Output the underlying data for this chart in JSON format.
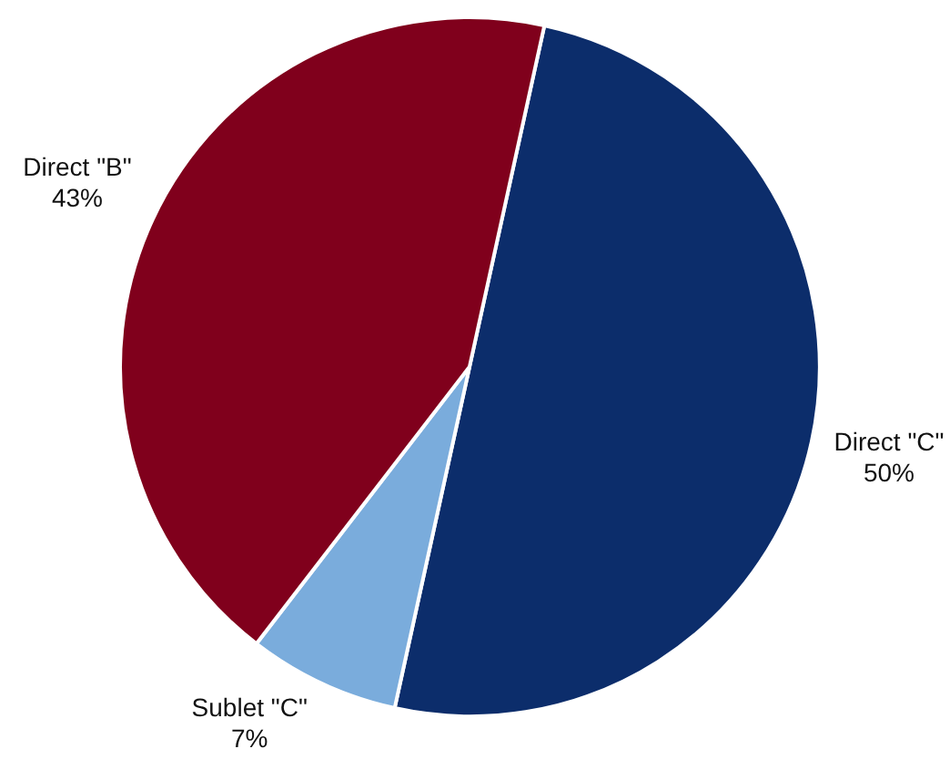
{
  "chart_data": {
    "type": "pie",
    "categories": [
      "Direct \"C\"",
      "Sublet \"C\"",
      "Direct \"B\""
    ],
    "values": [
      50,
      7,
      43
    ],
    "value_labels": [
      "50%",
      "7%",
      "43%"
    ],
    "colors": [
      "#0c2d6b",
      "#7aacdc",
      "#80001c"
    ]
  }
}
